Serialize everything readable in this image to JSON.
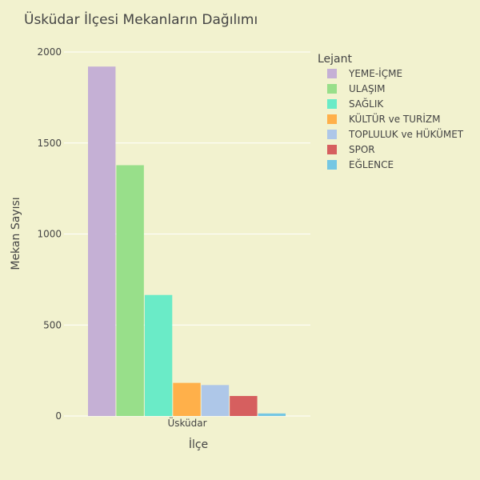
{
  "chart_data": {
    "type": "bar",
    "title": "Üsküdar İlçesi Mekanların Dağılımı",
    "xlabel": "İlçe",
    "ylabel": "Mekan Sayısı",
    "categories": [
      "Üsküdar"
    ],
    "ylim": [
      0,
      2000
    ],
    "yticks": [
      0,
      500,
      1000,
      1500,
      2000
    ],
    "grid": true,
    "legend_title": "Lejant",
    "legend_position": "right",
    "series": [
      {
        "name": "YEME-İÇME",
        "values": [
          1920
        ],
        "color": "#c5b0d5"
      },
      {
        "name": "ULAŞIM",
        "values": [
          1378
        ],
        "color": "#98df8a"
      },
      {
        "name": "SAĞLIK",
        "values": [
          665
        ],
        "color": "#6aebc7"
      },
      {
        "name": "KÜLTÜR ve TURİZM",
        "values": [
          182
        ],
        "color": "#ffb04a"
      },
      {
        "name": "TOPLULUK ve HÜKÜMET",
        "values": [
          170
        ],
        "color": "#aec7e8"
      },
      {
        "name": "SPOR",
        "values": [
          110
        ],
        "color": "#d65f5f"
      },
      {
        "name": "EĞLENCE",
        "values": [
          14
        ],
        "color": "#75c7e3"
      }
    ]
  }
}
